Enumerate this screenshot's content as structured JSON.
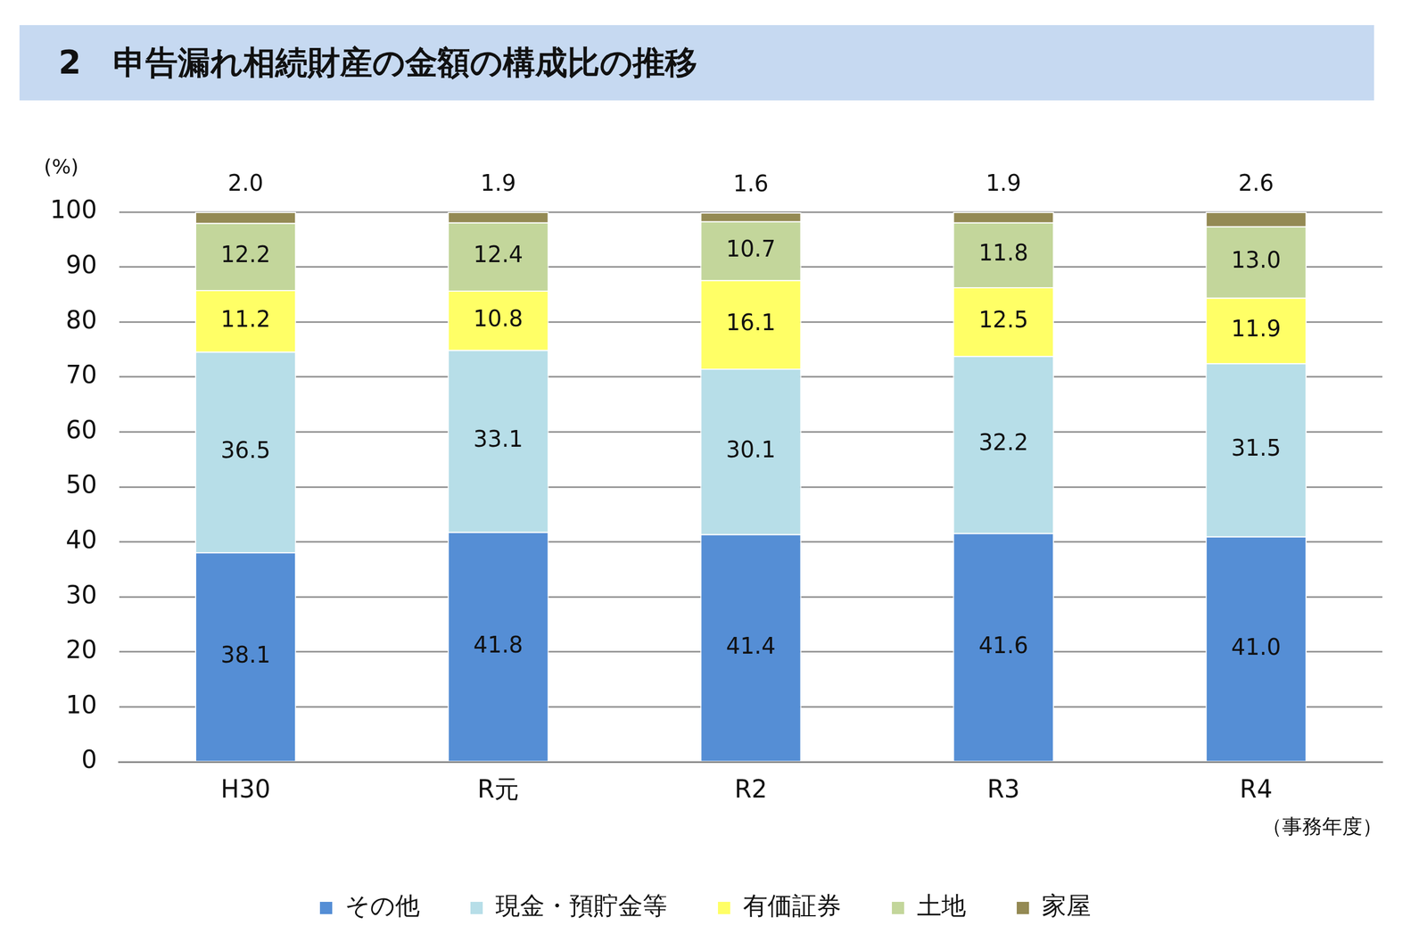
{
  "chart_data": {
    "type": "bar",
    "title": "2　申告漏れ相続財産の金額の構成比の推移",
    "y_label": "(%)",
    "x_label": "（事務年度）",
    "categories": [
      "H30",
      "R元",
      "R2",
      "R3",
      "R4"
    ],
    "series": [
      {
        "name": "その他",
        "color": "#558ed5",
        "values": [
          38.1,
          41.8,
          41.4,
          41.6,
          41.0
        ],
        "value_labels": [
          "38.1",
          "41.8",
          "41.4",
          "41.6",
          "41.0"
        ]
      },
      {
        "name": "現金・預貯金等",
        "color": "#b7dee8",
        "values": [
          36.5,
          33.1,
          30.1,
          32.2,
          31.5
        ]
      },
      {
        "name": "有価証券",
        "color": "#ffff66",
        "values": [
          11.2,
          10.8,
          16.1,
          12.5,
          11.9
        ]
      },
      {
        "name": "土地",
        "color": "#c3d69b",
        "values": [
          12.2,
          12.4,
          10.7,
          11.8,
          13.0
        ],
        "value_labels": [
          "12.2",
          "12.4",
          "10.7",
          "11.8",
          "13.0"
        ]
      },
      {
        "name": "家屋",
        "color": "#948a54",
        "values": [
          2.0,
          1.9,
          1.6,
          1.9,
          2.6
        ],
        "value_labels": [
          "2.0",
          "1.9",
          "1.6",
          "1.9",
          "2.6"
        ]
      }
    ],
    "ylim": [
      0,
      100
    ],
    "yticks": [
      0,
      10,
      20,
      30,
      40,
      50,
      60,
      70,
      80,
      90,
      100
    ],
    "grid": true,
    "stacked": true,
    "data_labels": true,
    "legend": "bottom"
  }
}
